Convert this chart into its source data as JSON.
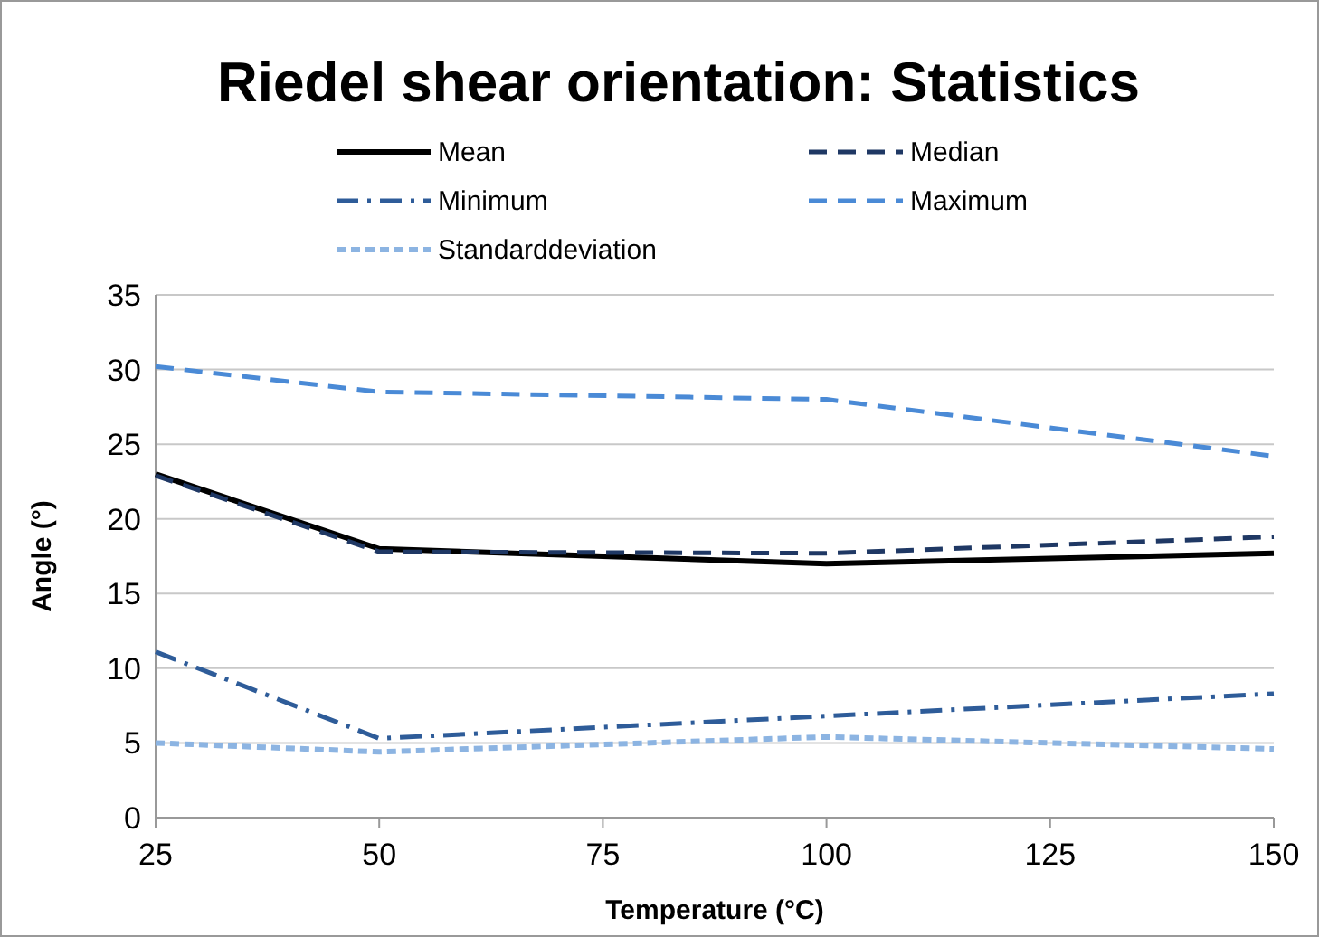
{
  "chart_data": {
    "type": "line",
    "title": "Riedel shear orientation: Statistics",
    "xlabel": "Temperature (°C)",
    "ylabel": "Angle (°)",
    "x": [
      25,
      50,
      100,
      150
    ],
    "series": [
      {
        "name": "Mean",
        "color": "#000000",
        "line_style": "solid",
        "values": [
          23,
          18,
          17,
          17.7
        ]
      },
      {
        "name": "Median",
        "color": "#1f3864",
        "line_style": "dashed",
        "values": [
          22.9,
          17.8,
          17.7,
          18.8
        ]
      },
      {
        "name": "Minimum",
        "color": "#2e5c99",
        "line_style": "dashdot",
        "values": [
          11.1,
          5.3,
          6.8,
          8.3
        ]
      },
      {
        "name": "Maximum",
        "color": "#4a8ad6",
        "line_style": "dashed",
        "values": [
          30.2,
          28.5,
          28,
          24.2
        ]
      },
      {
        "name": "Standarddeviation",
        "color": "#8cb4e2",
        "line_style": "dotted",
        "values": [
          5.0,
          4.4,
          5.4,
          4.6
        ]
      }
    ],
    "xlim": [
      25,
      150
    ],
    "xticks": [
      25,
      50,
      75,
      100,
      125,
      150
    ],
    "ylim": [
      0,
      35
    ],
    "yticks": [
      0,
      5,
      10,
      15,
      20,
      25,
      30,
      35
    ],
    "grid": "y",
    "legend": "top",
    "marker": "none"
  }
}
